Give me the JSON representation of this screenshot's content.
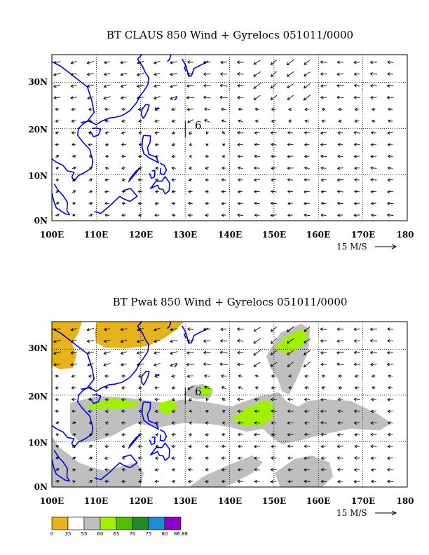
{
  "panels": [
    {
      "id": "top",
      "title": "BT CLAUS 850 Wind + Gyrelocs 051011/0000",
      "x_ticks": [
        "100E",
        "110E",
        "120E",
        "130E",
        "140E",
        "150E",
        "160E",
        "170E",
        "180"
      ],
      "y_ticks": [
        "0N",
        "10N",
        "20N",
        "30N"
      ],
      "scale_label": "15 M/S",
      "storm_marker": {
        "lon": 133.5,
        "lat": 20.7,
        "symbol": "6"
      },
      "has_shading": false
    },
    {
      "id": "bottom",
      "title": "BT Pwat 850 Wind + Gyrelocs 051011/0000",
      "x_ticks": [
        "100E",
        "110E",
        "120E",
        "130E",
        "140E",
        "150E",
        "160E",
        "170E",
        "180"
      ],
      "y_ticks": [
        "0N",
        "10N",
        "20N",
        "30N"
      ],
      "scale_label": "15 M/S",
      "storm_marker": {
        "lon": 133.5,
        "lat": 20.7,
        "symbol": "6"
      },
      "has_shading": true
    }
  ],
  "map_extent": {
    "lon": [
      100,
      180
    ],
    "lat": [
      0,
      36
    ]
  },
  "colorbar": {
    "labels": [
      "0",
      "35",
      "55",
      "60",
      "65",
      "70",
      "75",
      "80",
      "86.88"
    ],
    "colors": [
      "#e6b31a",
      "#ffffff",
      "#bfbfbf",
      "#a0f000",
      "#50c000",
      "#1e8c1e",
      "#1e8cd2",
      "#8c00c8"
    ]
  },
  "colors": {
    "coastline": "#0000ff",
    "arrow": "#000000",
    "grid": "#000000"
  }
}
